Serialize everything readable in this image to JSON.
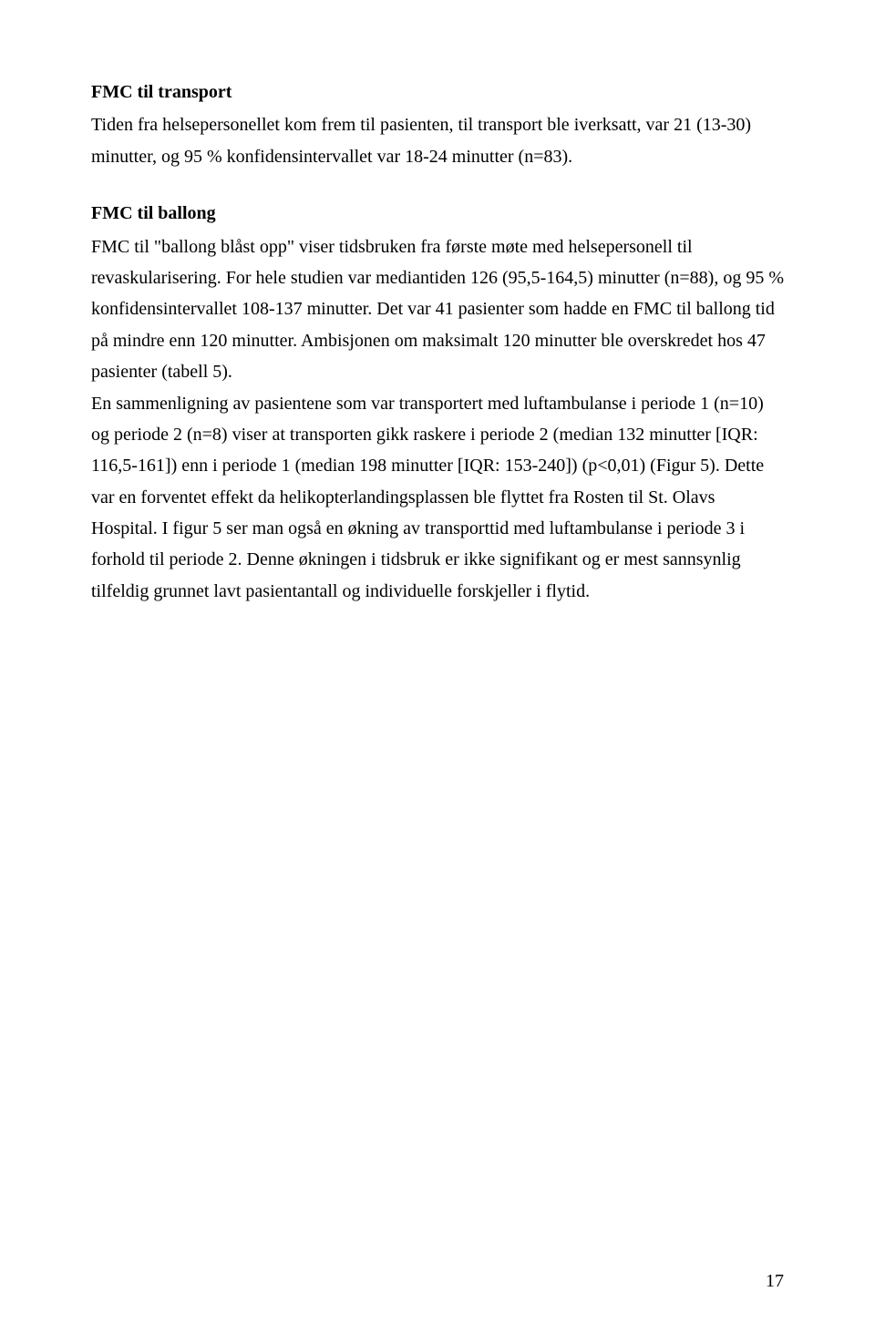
{
  "section1": {
    "heading": "FMC til transport",
    "body": "Tiden fra helsepersonellet kom frem til pasienten, til transport ble iverksatt, var 21 (13-30) minutter, og 95 % konfidensintervallet var 18-24 minutter (n=83)."
  },
  "section2": {
    "heading": "FMC til ballong",
    "body": "FMC til \"ballong blåst opp\" viser tidsbruken fra første møte med helsepersonell til revaskularisering. For hele studien var mediantiden 126 (95,5-164,5) minutter (n=88), og 95 % konfidensintervallet 108-137 minutter. Det var 41 pasienter som hadde en FMC til ballong tid på mindre enn 120 minutter. Ambisjonen om maksimalt 120 minutter ble overskredet hos 47 pasienter (tabell 5).",
    "body2": "En sammenligning av pasientene som var transportert med luftambulanse i periode 1 (n=10) og periode 2 (n=8) viser at transporten gikk raskere i periode 2 (median 132 minutter [IQR: 116,5-161]) enn i periode 1 (median 198 minutter [IQR: 153-240]) (p<0,01) (Figur 5). Dette var en forventet effekt da helikopterlandingsplassen ble flyttet fra Rosten til St. Olavs Hospital. I figur 5 ser man også en økning av transporttid med luftambulanse i periode 3 i forhold til periode 2. Denne økningen i tidsbruk er ikke signifikant og er mest sannsynlig tilfeldig grunnet lavt pasientantall og individuelle forskjeller i flytid."
  },
  "page_number": "17"
}
